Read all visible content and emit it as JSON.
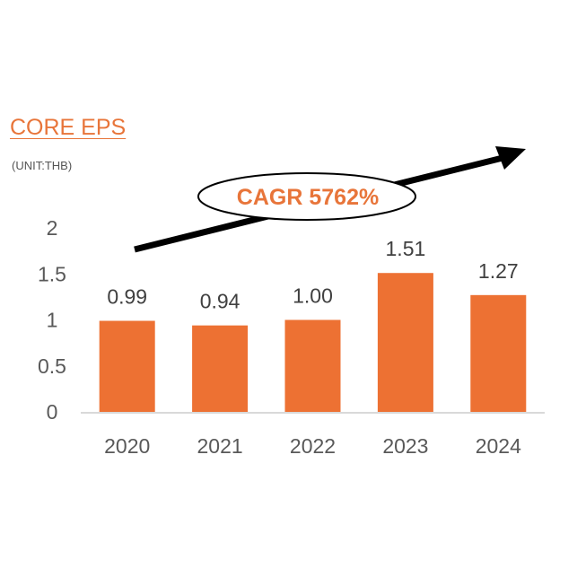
{
  "header": {
    "title": "CORE EPS",
    "unit": "(UNIT:THB)"
  },
  "colors": {
    "bar": "#ED7133",
    "accent_text": "#E8753A",
    "axis_text": "#595959",
    "label_text": "#404040",
    "arrow": "#000000",
    "axis_line": "#D9D9D9"
  },
  "annotation": {
    "cagr_label": "CAGR 5762%",
    "arrow_direction": "up-right"
  },
  "chart_data": {
    "type": "bar",
    "categories": [
      "2020",
      "2021",
      "2022",
      "2023",
      "2024"
    ],
    "values": [
      0.99,
      0.94,
      1.0,
      1.51,
      1.27
    ],
    "value_labels": [
      "0.99",
      "0.94",
      "1.00",
      "1.51",
      "1.27"
    ],
    "y_ticks": [
      "0",
      "0.5",
      "1",
      "1.5",
      "2"
    ],
    "ylim": [
      0,
      2
    ],
    "grid": false,
    "legend": "none"
  }
}
